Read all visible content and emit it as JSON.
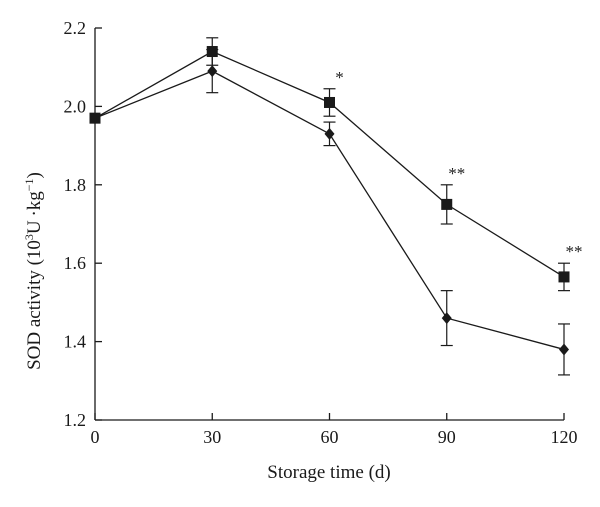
{
  "chart_data": {
    "type": "line",
    "title": "",
    "xlabel": "Storage time (d)",
    "ylabel": {
      "prefix": "SOD activity (10",
      "sup1": "3",
      "middle": "U ·kg",
      "sup2": "−1",
      "suffix": ")"
    },
    "xlim": [
      0,
      120
    ],
    "ylim": [
      1.2,
      2.2
    ],
    "xticks": [
      0,
      30,
      60,
      90,
      120
    ],
    "yticks": [
      "1.2",
      "1.4",
      "1.6",
      "1.8",
      "2.0",
      "2.2"
    ],
    "grid": false,
    "legend": "none",
    "x": [
      0,
      30,
      60,
      90,
      120
    ],
    "series": [
      {
        "marker": "square",
        "values": [
          1.97,
          2.14,
          2.01,
          1.75,
          1.565
        ],
        "errors": [
          0,
          0.035,
          0.035,
          0.05,
          0.035
        ]
      },
      {
        "marker": "diamond",
        "values": [
          1.97,
          2.09,
          1.93,
          1.46,
          1.38
        ],
        "errors": [
          0,
          0.055,
          0.03,
          0.07,
          0.065
        ]
      }
    ],
    "annotations": [
      {
        "x": 60,
        "text": "*"
      },
      {
        "x": 90,
        "text": "**"
      },
      {
        "x": 120,
        "text": "**"
      }
    ],
    "colors": {
      "line": "#1a1a1a"
    }
  }
}
